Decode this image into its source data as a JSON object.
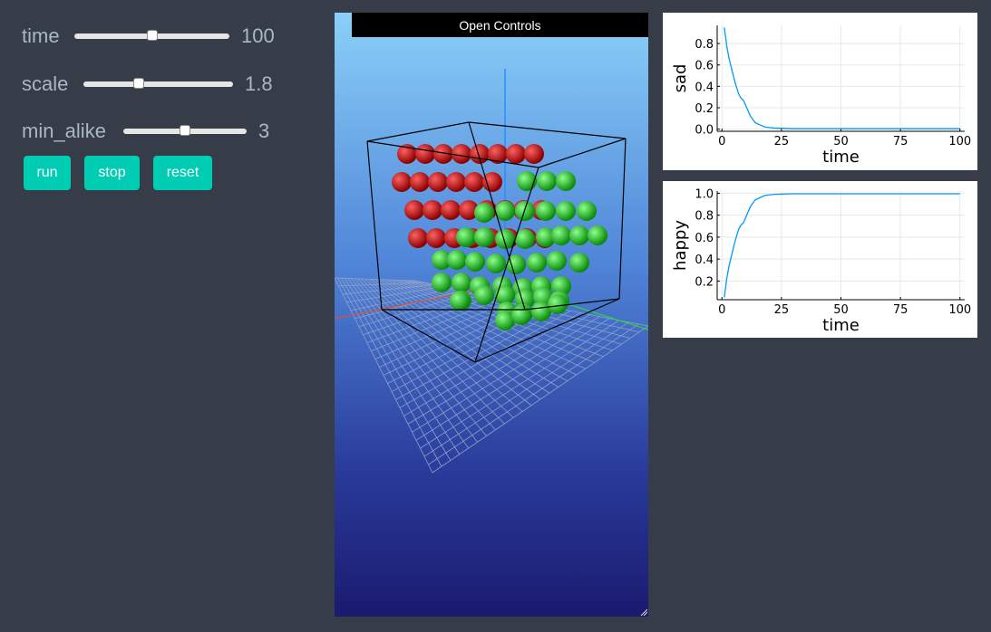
{
  "controls": {
    "sliders": [
      {
        "label": "time",
        "value": "100",
        "fraction": 0.5
      },
      {
        "label": "scale",
        "value": "1.8",
        "fraction": 0.36
      },
      {
        "label": "min_alike",
        "value": "3",
        "fraction": 0.5
      }
    ],
    "buttons": {
      "run": "run",
      "stop": "stop",
      "reset": "reset"
    }
  },
  "scene": {
    "open_controls_label": "Open Controls",
    "colors": {
      "agent_a": "#c00000",
      "agent_b": "#10c010",
      "bounding_box": "#000000",
      "grid": "#8fa0c8"
    }
  },
  "chart_data": [
    {
      "type": "line",
      "ylabel": "sad",
      "xlabel": "time",
      "xticks": [
        "0",
        "25",
        "50",
        "75",
        "100"
      ],
      "yticks": [
        "0.0",
        "0.2",
        "0.4",
        "0.6",
        "0.8"
      ],
      "xlim": [
        -2,
        102
      ],
      "ylim": [
        -0.02,
        0.97
      ],
      "grid": true,
      "series": [
        {
          "color": "#009af9",
          "x": [
            1,
            2,
            3,
            4,
            5,
            6,
            7,
            8,
            9,
            10,
            11,
            12,
            13,
            14,
            15,
            16,
            17,
            18,
            20,
            22,
            25,
            30,
            40,
            50,
            60,
            70,
            80,
            90,
            100
          ],
          "y": [
            0.95,
            0.78,
            0.66,
            0.57,
            0.48,
            0.4,
            0.33,
            0.29,
            0.27,
            0.22,
            0.17,
            0.12,
            0.09,
            0.06,
            0.05,
            0.04,
            0.03,
            0.02,
            0.015,
            0.01,
            0.008,
            0.005,
            0.005,
            0.005,
            0.005,
            0.005,
            0.005,
            0.005,
            0.005
          ]
        }
      ]
    },
    {
      "type": "line",
      "ylabel": "happy",
      "xlabel": "time",
      "xticks": [
        "0",
        "25",
        "50",
        "75",
        "100"
      ],
      "yticks": [
        "0.2",
        "0.4",
        "0.6",
        "0.8",
        "1.0"
      ],
      "xlim": [
        -2,
        102
      ],
      "ylim": [
        0.03,
        1.02
      ],
      "grid": true,
      "series": [
        {
          "color": "#009af9",
          "x": [
            1,
            2,
            3,
            4,
            5,
            6,
            7,
            8,
            9,
            10,
            11,
            12,
            13,
            14,
            15,
            16,
            17,
            18,
            20,
            22,
            25,
            30,
            40,
            50,
            60,
            70,
            80,
            90,
            100
          ],
          "y": [
            0.05,
            0.22,
            0.34,
            0.43,
            0.52,
            0.6,
            0.67,
            0.71,
            0.73,
            0.78,
            0.83,
            0.88,
            0.91,
            0.94,
            0.95,
            0.96,
            0.97,
            0.98,
            0.985,
            0.99,
            0.992,
            0.995,
            0.995,
            0.995,
            0.995,
            0.995,
            0.995,
            0.995,
            0.995
          ]
        }
      ]
    }
  ]
}
